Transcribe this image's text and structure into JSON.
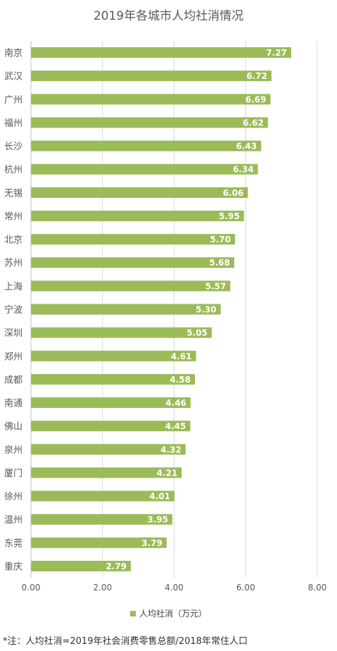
{
  "chart_data": {
    "type": "bar",
    "orientation": "horizontal",
    "title": "2019年各城市人均社消情况",
    "categories": [
      "南京",
      "武汉",
      "广州",
      "福州",
      "长沙",
      "杭州",
      "无锡",
      "常州",
      "北京",
      "苏州",
      "上海",
      "宁波",
      "深圳",
      "郑州",
      "成都",
      "南通",
      "佛山",
      "泉州",
      "厦门",
      "徐州",
      "温州",
      "东莞",
      "重庆"
    ],
    "series": [
      {
        "name": "人均社消（万元）",
        "values": [
          7.27,
          6.72,
          6.69,
          6.62,
          6.43,
          6.34,
          6.06,
          5.95,
          5.7,
          5.68,
          5.57,
          5.3,
          5.05,
          4.61,
          4.58,
          4.46,
          4.45,
          4.32,
          4.21,
          4.01,
          3.95,
          3.79,
          2.79
        ],
        "labels": [
          "7.27",
          "6.72",
          "6.69",
          "6.62",
          "6.43",
          "6.34",
          "6.06",
          "5.95",
          "5.70",
          "5.68",
          "5.57",
          "5.30",
          "5.05",
          "4.61",
          "4.58",
          "4.46",
          "4.45",
          "4.32",
          "4.21",
          "4.01",
          "3.95",
          "3.79",
          "2.79"
        ],
        "color": "#9bbb59"
      }
    ],
    "xlim": [
      0,
      8
    ],
    "xticks": [
      "0.00",
      "2.00",
      "4.00",
      "6.00",
      "8.00"
    ],
    "grid": true,
    "legend": "bottom",
    "footnote": "*注：人均社消=2019年社会消费零售总额/2018年常住人口"
  }
}
